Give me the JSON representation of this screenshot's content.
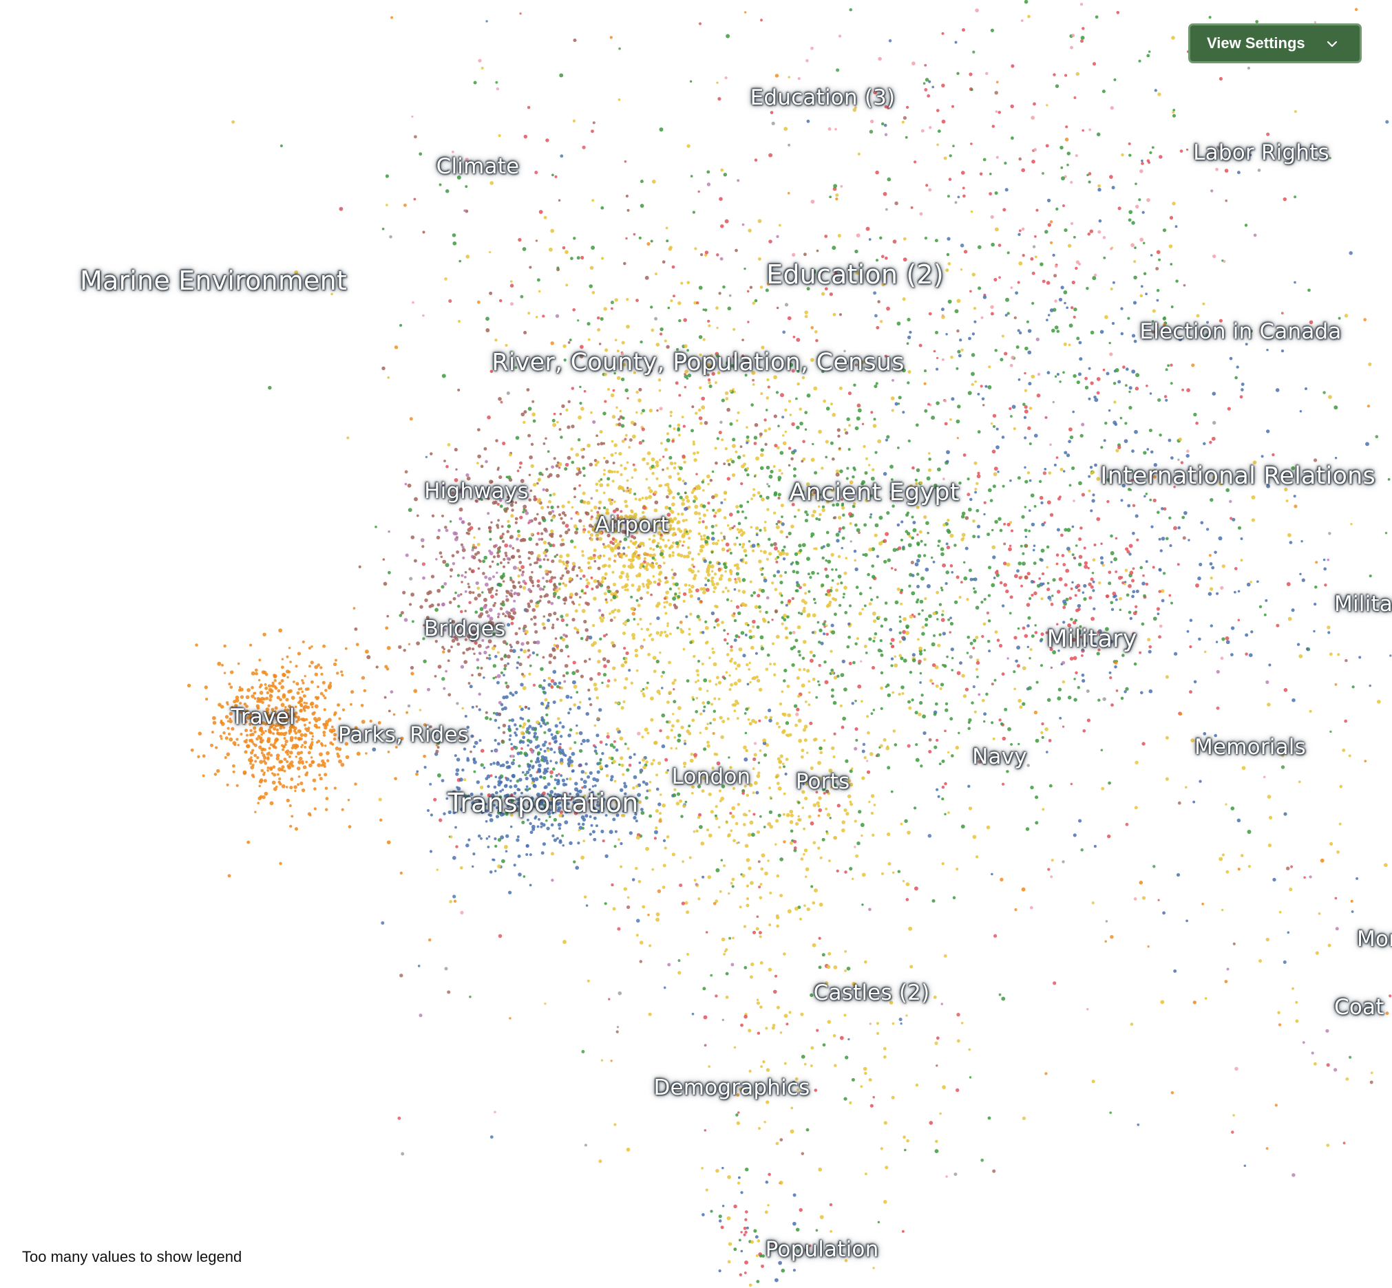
{
  "toolbar": {
    "view_settings_label": "View Settings"
  },
  "legend": {
    "note": "Too many values to show legend"
  },
  "colors": {
    "button_bg": "#3f6a40",
    "series": [
      "#f08a1c",
      "#4a72b0",
      "#e8c33a",
      "#a6655a",
      "#3e9a3e",
      "#e0535a",
      "#b87ab5",
      "#f3a1ad",
      "#9a9a9a"
    ]
  },
  "clusters": [
    {
      "label": "Education (3)"
    },
    {
      "label": "Labor Rights"
    },
    {
      "label": "Climate"
    },
    {
      "label": "Marine Environment"
    },
    {
      "label": "Education (2)"
    },
    {
      "label": "Election in Canada"
    },
    {
      "label": "River, County, Population, Census"
    },
    {
      "label": "International Relations"
    },
    {
      "label": "Highways"
    },
    {
      "label": "Ancient Egypt"
    },
    {
      "label": "Airport"
    },
    {
      "label": "Military Trai"
    },
    {
      "label": "Bridges"
    },
    {
      "label": "Military"
    },
    {
      "label": "Travel"
    },
    {
      "label": "Parks, Rides"
    },
    {
      "label": "Navy"
    },
    {
      "label": "Memorials"
    },
    {
      "label": "London"
    },
    {
      "label": "Ports"
    },
    {
      "label": "Transportation"
    },
    {
      "label": "Mor"
    },
    {
      "label": "Castles (2)"
    },
    {
      "label": "Coat"
    },
    {
      "label": "Demographics"
    },
    {
      "label": "Population"
    }
  ]
}
